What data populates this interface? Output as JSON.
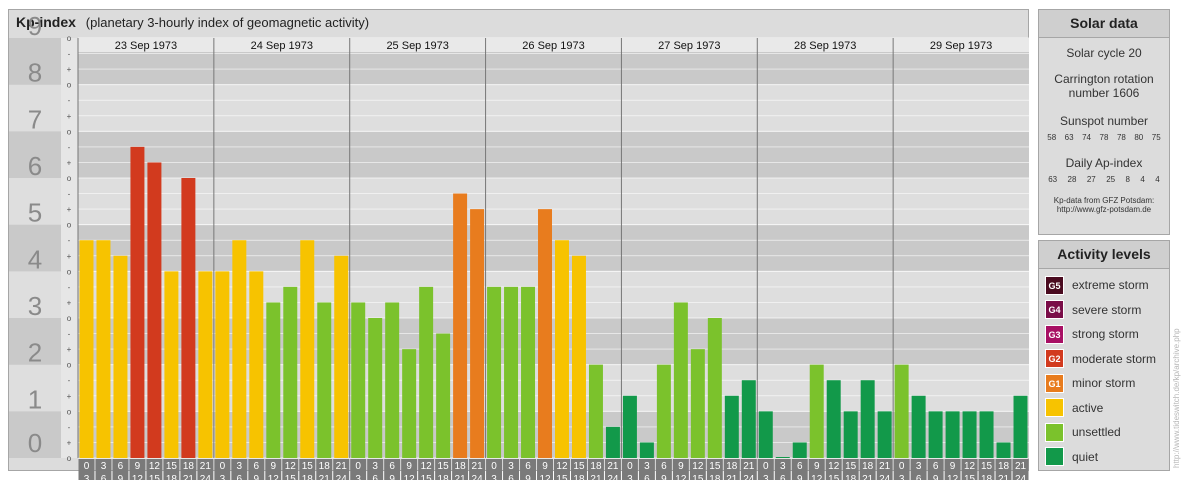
{
  "title": {
    "main": "Kp-index",
    "sub": "(planetary 3-hourly index of geomagnetic activity)"
  },
  "chart_data": {
    "type": "bar",
    "title": "Kp-index",
    "subtitle": "(planetary 3-hourly index of geomagnetic activity)",
    "ylim": [
      0,
      9
    ],
    "y_ticks": [
      "0",
      "1",
      "2",
      "3",
      "4",
      "5",
      "6",
      "7",
      "8",
      "9"
    ],
    "minor_tick_labels": [
      "o",
      "+",
      "-"
    ],
    "days": [
      "23 Sep 1973",
      "24 Sep 1973",
      "25 Sep 1973",
      "26 Sep 1973",
      "27 Sep 1973",
      "28 Sep 1973",
      "29 Sep 1973"
    ],
    "interval_start_labels": [
      "0",
      "3",
      "6",
      "9",
      "12",
      "15",
      "18",
      "21"
    ],
    "interval_end_labels": [
      "3",
      "6",
      "9",
      "12",
      "15",
      "18",
      "21",
      "24"
    ],
    "values": [
      4.667,
      4.667,
      4.333,
      6.667,
      6.333,
      4.0,
      6.0,
      4.0,
      4.0,
      4.667,
      4.0,
      3.333,
      3.667,
      4.667,
      3.333,
      4.333,
      3.333,
      3.0,
      3.333,
      2.333,
      3.667,
      2.667,
      5.667,
      5.333,
      3.667,
      3.667,
      3.667,
      5.333,
      4.667,
      4.333,
      2.0,
      0.667,
      1.333,
      0.333,
      2.0,
      3.333,
      2.333,
      3.0,
      1.333,
      1.667,
      1.0,
      0.0,
      0.333,
      2.0,
      1.667,
      1.0,
      1.667,
      1.0,
      2.0,
      1.333,
      1.0,
      1.0,
      1.0,
      1.0,
      0.333,
      1.333
    ],
    "grid": true
  },
  "colors": {
    "extreme": "#4a0b20",
    "severe": "#7a0d48",
    "strong": "#a81064",
    "moderate": "#d23a1e",
    "minor": "#e87c1e",
    "active": "#f7c300",
    "unsettled": "#7bc22c",
    "quiet": "#12994a",
    "band_dark": "#c9c9c9",
    "band_light": "#dedede",
    "label_bg": "#7a7a7a"
  },
  "solar": {
    "header": "Solar data",
    "cycle": "Solar cycle 20",
    "carrington_line1": "Carrington rotation",
    "carrington_line2": "number 1606",
    "sunspot_title": "Sunspot number",
    "sunspot_values": [
      "58",
      "63",
      "74",
      "78",
      "78",
      "80",
      "75"
    ],
    "ap_title": "Daily Ap-index",
    "ap_values": [
      "63",
      "28",
      "27",
      "25",
      "8",
      "4",
      "4"
    ],
    "source_line1": "Kp-data from GFZ Potsdam:",
    "source_line2": "http://www.gfz-potsdam.de"
  },
  "legend": {
    "header": "Activity levels",
    "items": [
      {
        "badge": "G5",
        "label": "extreme storm",
        "color_key": "extreme"
      },
      {
        "badge": "G4",
        "label": "severe storm",
        "color_key": "severe"
      },
      {
        "badge": "G3",
        "label": "strong storm",
        "color_key": "strong"
      },
      {
        "badge": "G2",
        "label": "moderate storm",
        "color_key": "moderate"
      },
      {
        "badge": "G1",
        "label": "minor storm",
        "color_key": "minor"
      },
      {
        "badge": "",
        "label": "active",
        "color_key": "active"
      },
      {
        "badge": "",
        "label": "unsettled",
        "color_key": "unsettled"
      },
      {
        "badge": "",
        "label": "quiet",
        "color_key": "quiet"
      }
    ]
  },
  "watermark": "http://www.tideswitch.de/kp/archive.php"
}
